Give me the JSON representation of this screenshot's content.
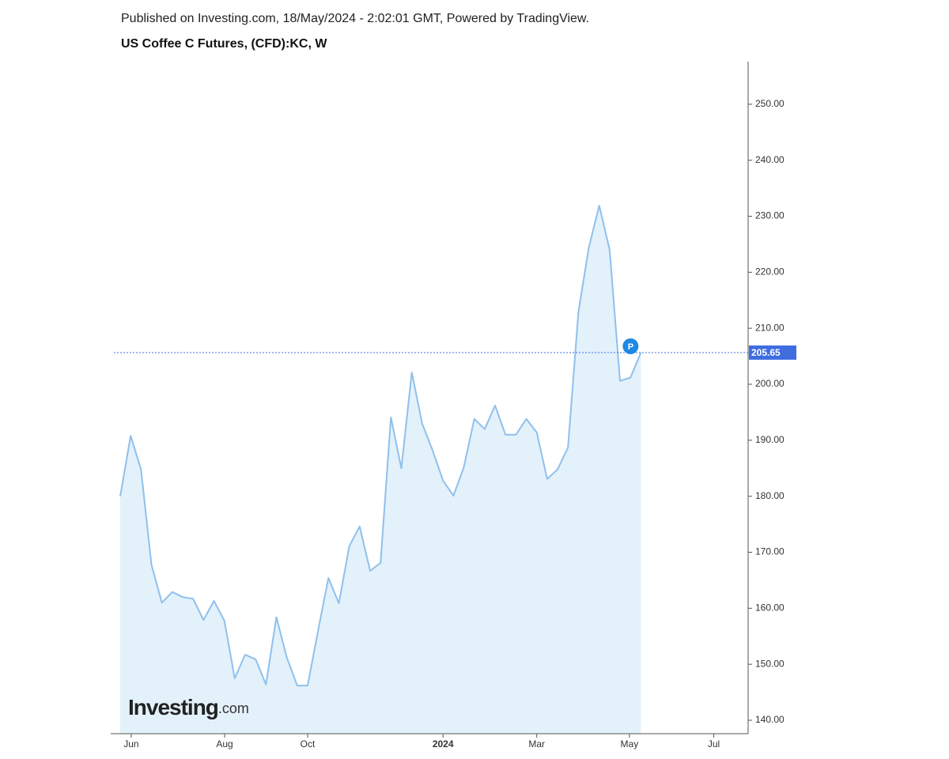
{
  "chart_data": {
    "type": "area",
    "subtitle": "Published on Investing.com, 18/May/2024 - 2:02:01 GMT, Powered by TradingView.",
    "title": "US Coffee C Futures, (CFD):KC, W",
    "logo": {
      "main": "Investing",
      "suffix": ".com"
    },
    "marker_label": "P",
    "x": [
      0,
      1,
      2,
      3,
      4,
      5,
      6,
      7,
      8,
      9,
      10,
      11,
      12,
      13,
      14,
      15,
      16,
      17,
      18,
      19,
      20,
      21,
      22,
      23,
      24,
      25,
      26,
      27,
      28,
      29,
      30,
      31,
      32,
      33,
      34,
      35,
      36,
      37,
      38,
      39,
      40,
      41,
      42,
      43,
      44,
      45,
      46,
      47,
      48,
      49,
      50
    ],
    "series": [
      {
        "name": "US Coffee C Futures",
        "color": "#8fc0ec",
        "fill": "#e3f1fb",
        "values": [
          180.0,
          190.8,
          184.8,
          167.8,
          161.0,
          162.9,
          162.0,
          161.7,
          157.9,
          161.3,
          157.8,
          147.5,
          151.7,
          150.9,
          146.4,
          158.4,
          151.2,
          146.2,
          146.2,
          156.0,
          165.4,
          160.9,
          171.1,
          174.6,
          166.7,
          168.1,
          194.1,
          185.0,
          202.1,
          193.0,
          188.2,
          182.8,
          180.1,
          185.2,
          193.8,
          192.0,
          196.2,
          191.0,
          191.0,
          193.8,
          191.4,
          183.1,
          184.8,
          188.7,
          212.9,
          224.4,
          231.9,
          224.0,
          200.6,
          201.2,
          205.65
        ]
      }
    ],
    "price_line_color": "#3f6de0",
    "xlim": [
      -0.91,
      60.3
    ],
    "xticks": [
      {
        "value": 1.06,
        "label": "Jun"
      },
      {
        "value": 10.03,
        "label": "Aug"
      },
      {
        "value": 18.0,
        "label": "Oct"
      },
      {
        "value": 31.0,
        "label": "2024"
      },
      {
        "value": 40.0,
        "label": "Mar"
      },
      {
        "value": 48.9,
        "label": "May"
      },
      {
        "value": 57.0,
        "label": "Jul"
      }
    ],
    "ylim": [
      137.6,
      257.6
    ],
    "yticks": [
      {
        "value": 140,
        "label": "140.00"
      },
      {
        "value": 150,
        "label": "150.00"
      },
      {
        "value": 160,
        "label": "160.00"
      },
      {
        "value": 170,
        "label": "170.00"
      },
      {
        "value": 180,
        "label": "180.00"
      },
      {
        "value": 190,
        "label": "190.00"
      },
      {
        "value": 200,
        "label": "200.00"
      },
      {
        "value": 210,
        "label": "210.00"
      },
      {
        "value": 220,
        "label": "220.00"
      },
      {
        "value": 230,
        "label": "230.00"
      },
      {
        "value": 240,
        "label": "240.00"
      },
      {
        "value": 250,
        "label": "250.00"
      }
    ]
  }
}
